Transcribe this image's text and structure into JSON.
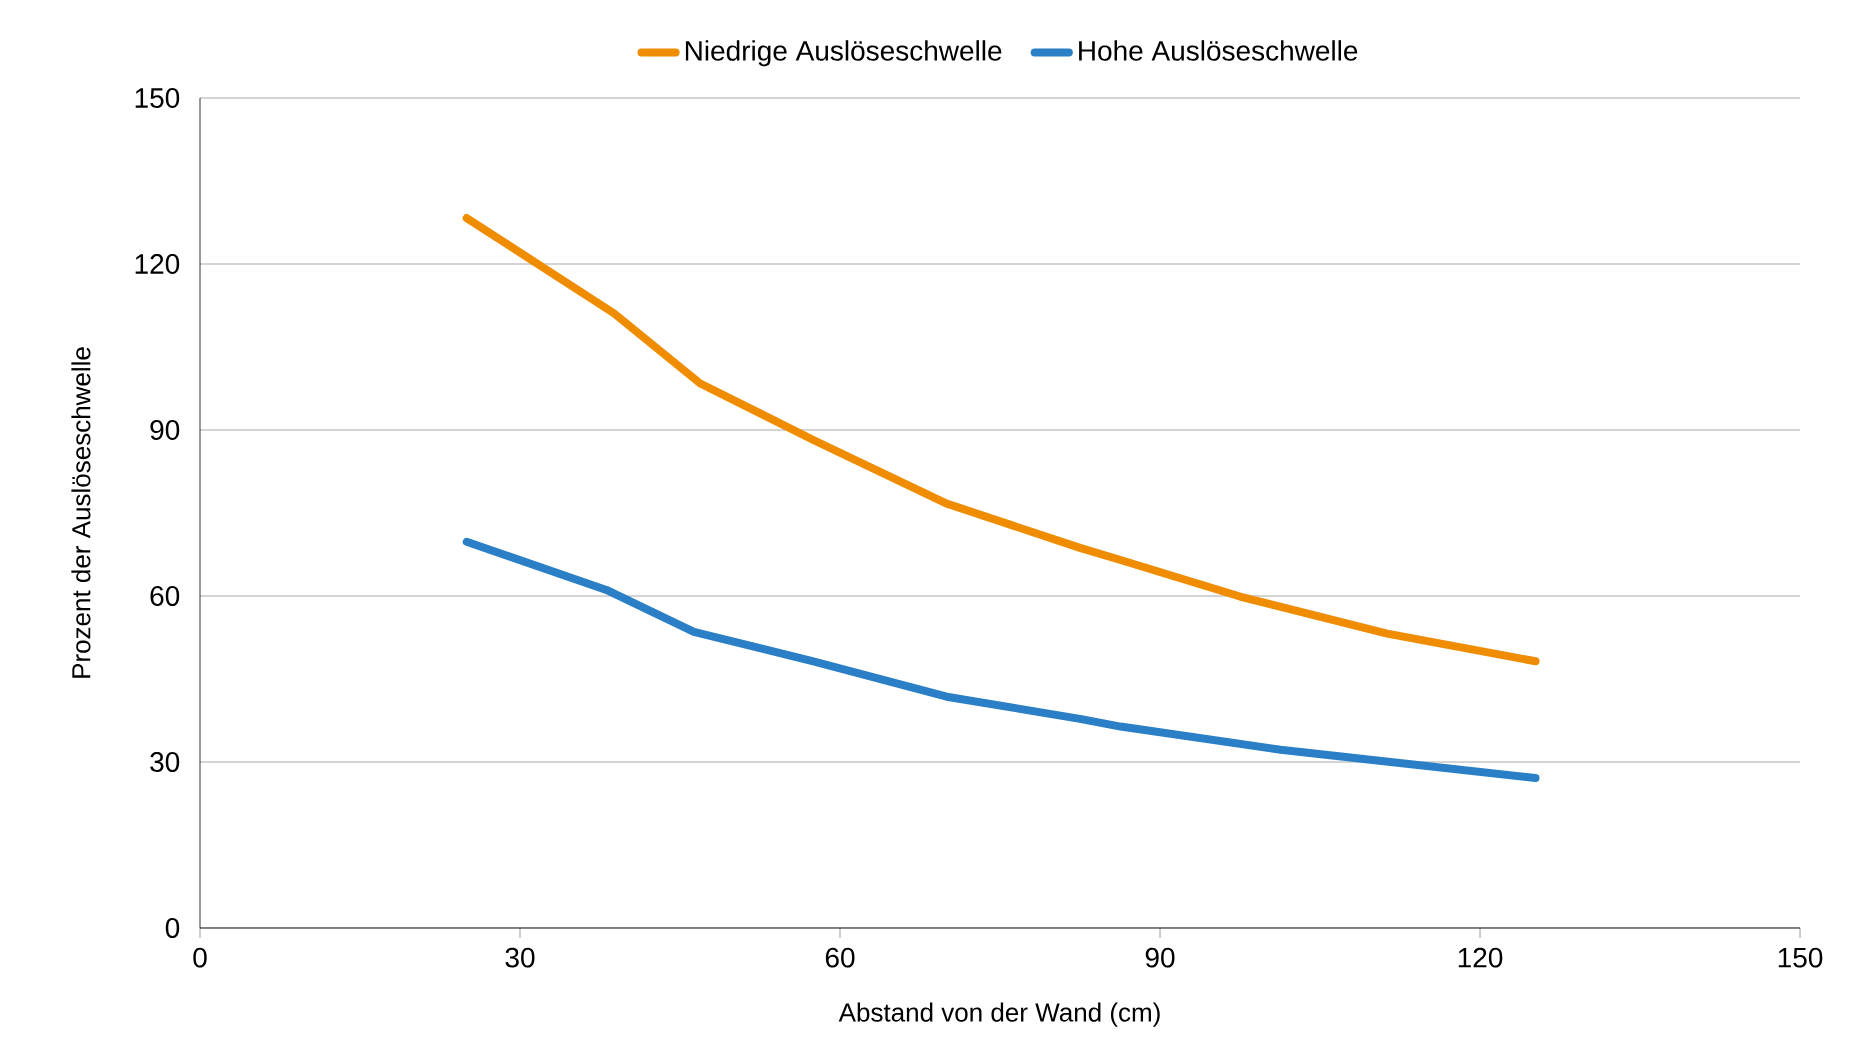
{
  "chart_data": {
    "type": "line",
    "xlabel": "Abstand von der Wand (cm)",
    "ylabel": "Prozent der Auslöseschwelle",
    "xlim": [
      0,
      150
    ],
    "xticks": [
      0,
      30,
      60,
      90,
      120,
      150
    ],
    "ylim": [
      0,
      150
    ],
    "yticks": [
      0,
      30,
      60,
      90,
      120,
      150
    ],
    "grid": "y",
    "legend": "top",
    "marker": "none",
    "line_style": "solid",
    "series": [
      {
        "name": "Niedrige Auslöseschwelle",
        "color": "#f08c00",
        "x": [
          25,
          38.8,
          46.9,
          57.5,
          70,
          82.5,
          86.3,
          97.5,
          111.3,
          125.2
        ],
        "values": [
          128.3,
          111.1,
          98.4,
          88.2,
          76.7,
          68.7,
          66.5,
          59.9,
          53.2,
          48.2
        ]
      },
      {
        "name": "Hohe Auslöseschwelle",
        "color": "#2a7fc6",
        "x": [
          25,
          38.1,
          46.3,
          57.5,
          70,
          82.5,
          86.3,
          101.3,
          125.2
        ],
        "values": [
          69.8,
          61.1,
          53.5,
          48.2,
          41.8,
          37.8,
          36.4,
          32.2,
          27.1
        ]
      }
    ]
  }
}
